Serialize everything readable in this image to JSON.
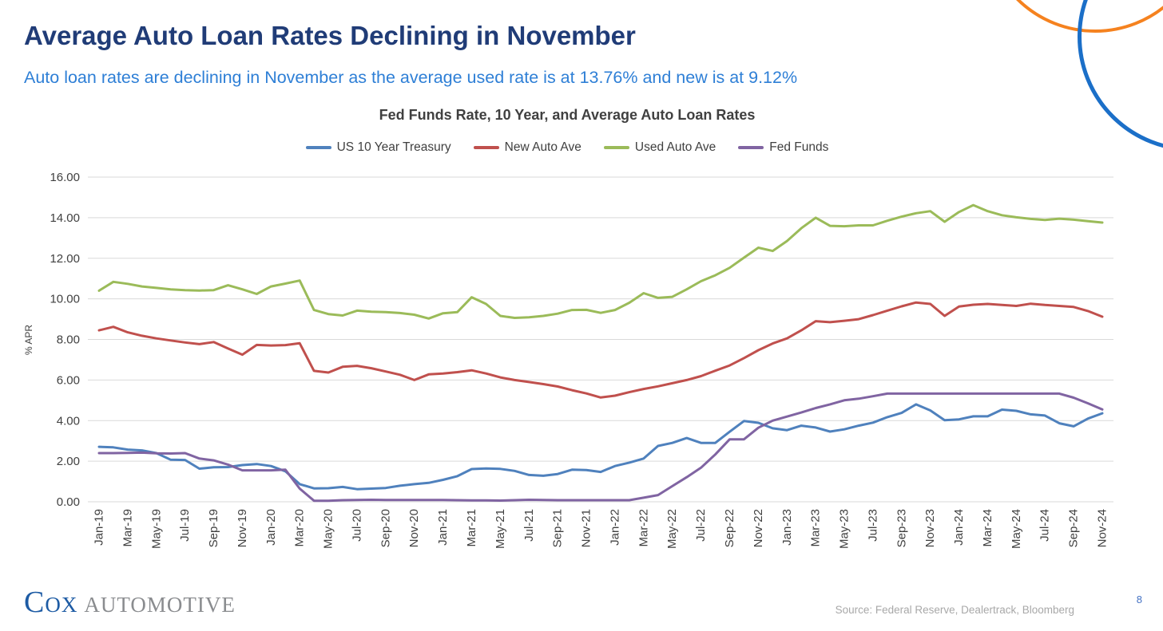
{
  "slide": {
    "title": "Average Auto Loan Rates Declining in November",
    "subtitle": "Auto loan rates are declining in November as the average used rate is at 13.76% and new is at 9.12%",
    "page_number": "8",
    "source": "Source: Federal Reserve, Dealertrack, Bloomberg",
    "logo": {
      "cox": "COX",
      "automotive": "AUTOMOTIVE"
    },
    "colors": {
      "title_navy": "#203C77",
      "subtitle_blue": "#2E7FD6",
      "decor_circle_orange": "#F5821F",
      "decor_circle_blue": "#1B6FC8",
      "grid_gray": "#D9D9D9",
      "axis_text": "#404040"
    }
  },
  "chart_data": {
    "type": "line",
    "title": "Fed Funds Rate, 10 Year, and Average Auto Loan Rates",
    "ylabel": "% APR",
    "ylim": [
      0,
      16
    ],
    "ytick_labels": [
      "0.00",
      "2.00",
      "4.00",
      "6.00",
      "8.00",
      "10.00",
      "12.00",
      "14.00",
      "16.00"
    ],
    "grid": "horizontal",
    "legend_position": "top",
    "xtick_every": 2,
    "x": [
      "Jan-19",
      "Feb-19",
      "Mar-19",
      "Apr-19",
      "May-19",
      "Jun-19",
      "Jul-19",
      "Aug-19",
      "Sep-19",
      "Oct-19",
      "Nov-19",
      "Dec-19",
      "Jan-20",
      "Feb-20",
      "Mar-20",
      "Apr-20",
      "May-20",
      "Jun-20",
      "Jul-20",
      "Aug-20",
      "Sep-20",
      "Oct-20",
      "Nov-20",
      "Dec-20",
      "Jan-21",
      "Feb-21",
      "Mar-21",
      "Apr-21",
      "May-21",
      "Jun-21",
      "Jul-21",
      "Aug-21",
      "Sep-21",
      "Oct-21",
      "Nov-21",
      "Dec-21",
      "Jan-22",
      "Feb-22",
      "Mar-22",
      "Apr-22",
      "May-22",
      "Jun-22",
      "Jul-22",
      "Aug-22",
      "Sep-22",
      "Oct-22",
      "Nov-22",
      "Dec-22",
      "Jan-23",
      "Feb-23",
      "Mar-23",
      "Apr-23",
      "May-23",
      "Jun-23",
      "Jul-23",
      "Aug-23",
      "Sep-23",
      "Oct-23",
      "Nov-23",
      "Dec-23",
      "Jan-24",
      "Feb-24",
      "Mar-24",
      "Apr-24",
      "May-24",
      "Jun-24",
      "Jul-24",
      "Aug-24",
      "Sep-24",
      "Oct-24",
      "Nov-24"
    ],
    "series": [
      {
        "name": "US 10 Year Treasury",
        "color": "#4F81BD",
        "values": [
          2.71,
          2.68,
          2.57,
          2.53,
          2.4,
          2.07,
          2.06,
          1.63,
          1.7,
          1.71,
          1.81,
          1.86,
          1.76,
          1.5,
          0.87,
          0.66,
          0.67,
          0.73,
          0.62,
          0.65,
          0.68,
          0.79,
          0.87,
          0.93,
          1.08,
          1.26,
          1.61,
          1.64,
          1.62,
          1.52,
          1.32,
          1.28,
          1.37,
          1.58,
          1.56,
          1.47,
          1.76,
          1.93,
          2.13,
          2.75,
          2.9,
          3.14,
          2.9,
          2.9,
          3.45,
          3.98,
          3.89,
          3.62,
          3.53,
          3.75,
          3.66,
          3.46,
          3.57,
          3.75,
          3.9,
          4.17,
          4.38,
          4.8,
          4.5,
          4.02,
          4.06,
          4.21,
          4.21,
          4.54,
          4.48,
          4.31,
          4.25,
          3.87,
          3.72,
          4.1,
          4.36
        ]
      },
      {
        "name": "New Auto Ave",
        "color": "#C0504D",
        "values": [
          8.45,
          8.62,
          8.35,
          8.18,
          8.05,
          7.95,
          7.85,
          7.77,
          7.87,
          7.55,
          7.25,
          7.73,
          7.7,
          7.72,
          7.81,
          6.45,
          6.37,
          6.65,
          6.7,
          6.58,
          6.42,
          6.26,
          6.0,
          6.28,
          6.32,
          6.39,
          6.48,
          6.32,
          6.13,
          6.0,
          5.9,
          5.8,
          5.68,
          5.5,
          5.34,
          5.14,
          5.23,
          5.4,
          5.56,
          5.69,
          5.84,
          6.0,
          6.19,
          6.46,
          6.72,
          7.08,
          7.47,
          7.8,
          8.05,
          8.45,
          8.9,
          8.85,
          8.92,
          9.0,
          9.2,
          9.42,
          9.63,
          9.82,
          9.75,
          9.16,
          9.62,
          9.71,
          9.75,
          9.7,
          9.65,
          9.76,
          9.7,
          9.65,
          9.6,
          9.4,
          9.12
        ]
      },
      {
        "name": "Used Auto Ave",
        "color": "#9BBB59",
        "values": [
          10.4,
          10.84,
          10.74,
          10.61,
          10.54,
          10.47,
          10.43,
          10.41,
          10.43,
          10.67,
          10.47,
          10.24,
          10.61,
          10.75,
          10.9,
          9.45,
          9.25,
          9.18,
          9.42,
          9.37,
          9.35,
          9.3,
          9.22,
          9.03,
          9.29,
          9.35,
          10.08,
          9.75,
          9.16,
          9.06,
          9.09,
          9.16,
          9.27,
          9.45,
          9.46,
          9.31,
          9.45,
          9.81,
          10.28,
          10.05,
          10.1,
          10.47,
          10.87,
          11.16,
          11.53,
          12.03,
          12.52,
          12.36,
          12.85,
          13.48,
          14.0,
          13.6,
          13.58,
          13.62,
          13.62,
          13.85,
          14.05,
          14.22,
          14.32,
          13.8,
          14.28,
          14.62,
          14.32,
          14.12,
          14.02,
          13.94,
          13.89,
          13.95,
          13.9,
          13.83,
          13.76
        ]
      },
      {
        "name": "Fed Funds",
        "color": "#8064A2",
        "values": [
          2.4,
          2.4,
          2.41,
          2.42,
          2.39,
          2.38,
          2.4,
          2.13,
          2.04,
          1.83,
          1.55,
          1.55,
          1.55,
          1.58,
          0.65,
          0.05,
          0.05,
          0.08,
          0.09,
          0.1,
          0.09,
          0.09,
          0.09,
          0.09,
          0.09,
          0.08,
          0.07,
          0.07,
          0.06,
          0.08,
          0.1,
          0.09,
          0.08,
          0.08,
          0.08,
          0.08,
          0.08,
          0.08,
          0.2,
          0.33,
          0.77,
          1.21,
          1.68,
          2.33,
          3.08,
          3.08,
          3.65,
          4.0,
          4.2,
          4.4,
          4.62,
          4.8,
          5.0,
          5.08,
          5.2,
          5.33,
          5.33,
          5.33,
          5.33,
          5.33,
          5.33,
          5.33,
          5.33,
          5.33,
          5.33,
          5.33,
          5.33,
          5.33,
          5.13,
          4.85,
          4.55
        ]
      }
    ]
  }
}
